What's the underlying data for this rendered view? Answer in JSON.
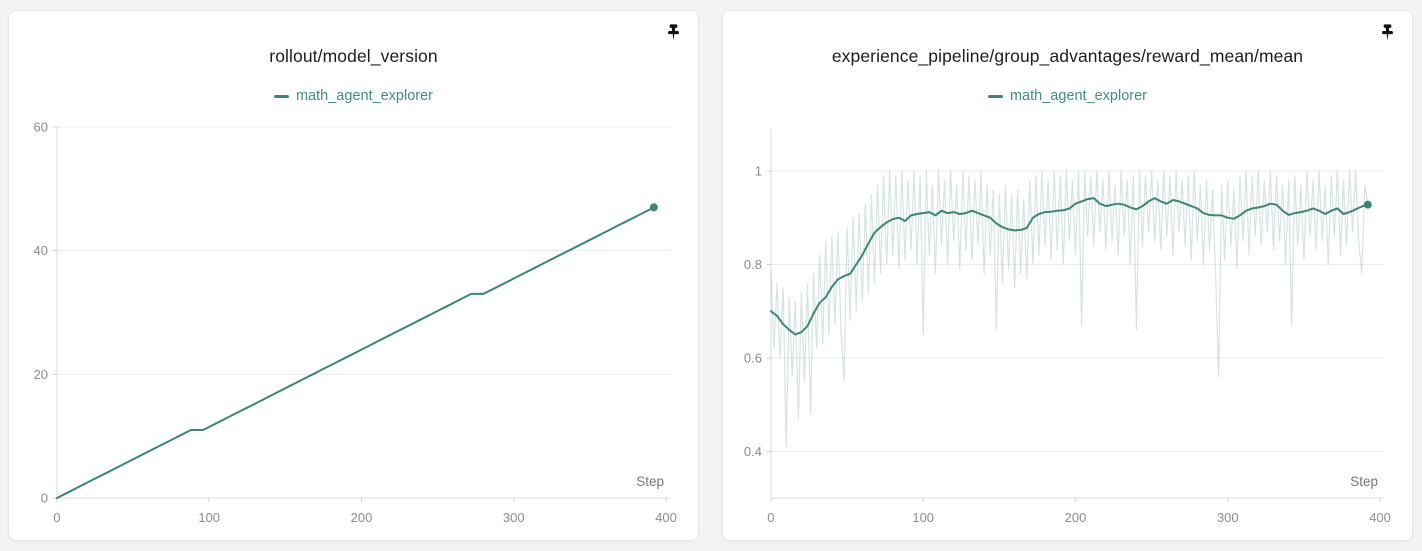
{
  "page": {
    "background": "#f3f3f4",
    "accent": "#3e8578"
  },
  "panels": [
    {
      "title": "rollout/model_version",
      "legend": {
        "label": "math_agent_explorer",
        "color": "#3e8578"
      },
      "icon": "pushpin-icon",
      "xlabel": "Step"
    },
    {
      "title": "experience_pipeline/group_advantages/reward_mean/mean",
      "legend": {
        "label": "math_agent_explorer",
        "color": "#3e8578"
      },
      "icon": "pushpin-icon",
      "xlabel": "Step"
    }
  ],
  "chart_data": [
    {
      "type": "line",
      "title": "rollout/model_version",
      "xlabel": "Step",
      "legend_position": "top",
      "grid": "horizontal",
      "xlim": [
        0,
        400
      ],
      "xticks": [
        0,
        100,
        200,
        300,
        400
      ],
      "ylim": [
        0,
        60
      ],
      "yticks": [
        0,
        20,
        40,
        60
      ],
      "plot_top": 20,
      "series": [
        {
          "name": "math_agent_explorer",
          "color": "#3e8578",
          "width": 2,
          "opacity": 1,
          "x0": 0,
          "dx": 8,
          "values": [
            0,
            1,
            2,
            3,
            4,
            5,
            6,
            7,
            8,
            9,
            10,
            11,
            11,
            12,
            13,
            14,
            15,
            16,
            17,
            18,
            19,
            20,
            21,
            22,
            23,
            24,
            25,
            26,
            27,
            28,
            29,
            30,
            31,
            32,
            33,
            33,
            34,
            35,
            36,
            37,
            38,
            39,
            40,
            41,
            42,
            43,
            44,
            45,
            46,
            47
          ],
          "end_dot": [
            392,
            47
          ]
        }
      ]
    },
    {
      "type": "line",
      "title": "experience_pipeline/group_advantages/reward_mean/mean",
      "xlabel": "Step",
      "legend_position": "top",
      "grid": "horizontal",
      "xlim": [
        0,
        400
      ],
      "xticks": [
        0,
        100,
        200,
        300,
        400
      ],
      "ylim": [
        0.3,
        1.09
      ],
      "yticks": [
        0.4,
        0.6,
        0.8,
        1
      ],
      "plot_top": 22,
      "series": [
        {
          "name": "math_agent_explorer (raw)",
          "color": "#3e8578",
          "width": 1.2,
          "opacity": 0.22,
          "x0": 0,
          "dx": 2,
          "values": [
            0.78,
            0.62,
            0.76,
            0.6,
            0.75,
            0.41,
            0.73,
            0.56,
            0.72,
            0.47,
            0.74,
            0.55,
            0.76,
            0.48,
            0.78,
            0.62,
            0.82,
            0.63,
            0.85,
            0.65,
            0.86,
            0.67,
            0.87,
            0.66,
            0.55,
            0.88,
            0.68,
            0.9,
            0.7,
            0.91,
            0.72,
            0.93,
            0.74,
            0.95,
            0.76,
            0.97,
            0.78,
            0.99,
            0.8,
            1.0,
            0.82,
            0.99,
            0.79,
            1.0,
            0.81,
            0.98,
            0.83,
            1.0,
            0.8,
            0.99,
            0.65,
            1.0,
            0.82,
            0.97,
            0.78,
            1.0,
            0.84,
            0.98,
            0.8,
            1.0,
            0.85,
            0.97,
            0.79,
            1.0,
            0.83,
            0.99,
            0.81,
            0.98,
            0.84,
            1.0,
            0.78,
            0.97,
            0.82,
            0.96,
            0.66,
            0.95,
            0.76,
            0.97,
            0.79,
            0.95,
            0.75,
            0.96,
            0.78,
            0.94,
            0.77,
            0.98,
            0.8,
            0.99,
            0.82,
            1.0,
            0.84,
            0.98,
            0.81,
            1.0,
            0.83,
            0.99,
            0.8,
            1.0,
            0.85,
            0.98,
            0.82,
            1.0,
            0.67,
            1.0,
            0.86,
            0.99,
            0.84,
            1.0,
            0.87,
            0.98,
            0.83,
            1.0,
            0.85,
            0.97,
            0.82,
            1.0,
            0.86,
            0.98,
            0.8,
            0.99,
            0.66,
            1.0,
            0.84,
            0.99,
            0.87,
            1.0,
            0.85,
            0.98,
            0.83,
            1.0,
            0.86,
            0.99,
            0.82,
            1.0,
            0.87,
            0.98,
            0.84,
            0.99,
            0.81,
            1.0,
            0.85,
            0.97,
            0.8,
            0.98,
            0.83,
            0.96,
            0.78,
            0.56,
            0.97,
            0.81,
            0.98,
            0.84,
            0.96,
            0.79,
            0.99,
            0.85,
            1.0,
            0.82,
            0.99,
            0.86,
            1.0,
            0.84,
            0.98,
            0.87,
            1.0,
            0.83,
            0.99,
            0.85,
            0.97,
            0.8,
            0.98,
            0.67,
            0.99,
            0.84,
            0.97,
            0.81,
            1.0,
            0.86,
            0.98,
            0.83,
            1.0,
            0.85,
            0.97,
            0.8,
            0.99,
            0.86,
            1.0,
            0.82,
            0.98,
            0.84,
            1.0,
            0.87,
            1.0,
            0.85,
            0.78,
            0.97,
            0.93
          ]
        },
        {
          "name": "math_agent_explorer",
          "color": "#3e8578",
          "width": 2,
          "opacity": 1,
          "x0": 0,
          "dx": 4,
          "values": [
            0.7,
            0.69,
            0.672,
            0.66,
            0.65,
            0.655,
            0.668,
            0.695,
            0.718,
            0.73,
            0.752,
            0.768,
            0.775,
            0.78,
            0.8,
            0.82,
            0.845,
            0.868,
            0.88,
            0.89,
            0.897,
            0.9,
            0.893,
            0.905,
            0.908,
            0.91,
            0.912,
            0.905,
            0.915,
            0.91,
            0.912,
            0.908,
            0.91,
            0.915,
            0.91,
            0.905,
            0.9,
            0.888,
            0.88,
            0.875,
            0.873,
            0.874,
            0.878,
            0.9,
            0.908,
            0.912,
            0.913,
            0.915,
            0.916,
            0.92,
            0.93,
            0.935,
            0.94,
            0.942,
            0.93,
            0.925,
            0.928,
            0.93,
            0.928,
            0.922,
            0.918,
            0.925,
            0.935,
            0.942,
            0.935,
            0.93,
            0.938,
            0.935,
            0.93,
            0.925,
            0.92,
            0.91,
            0.906,
            0.905,
            0.905,
            0.9,
            0.898,
            0.905,
            0.915,
            0.92,
            0.922,
            0.925,
            0.93,
            0.928,
            0.915,
            0.906,
            0.91,
            0.912,
            0.915,
            0.92,
            0.915,
            0.908,
            0.915,
            0.92,
            0.908,
            0.912,
            0.918,
            0.924,
            0.928
          ],
          "end_dot": [
            392,
            0.928
          ]
        }
      ]
    }
  ],
  "theme": {
    "grid_color": "#ededee",
    "axis_color": "#d8d8da",
    "tick_color": "#cfcfd2",
    "tick_label_color": "#8b8b91",
    "xlabel_color": "#75757c"
  }
}
